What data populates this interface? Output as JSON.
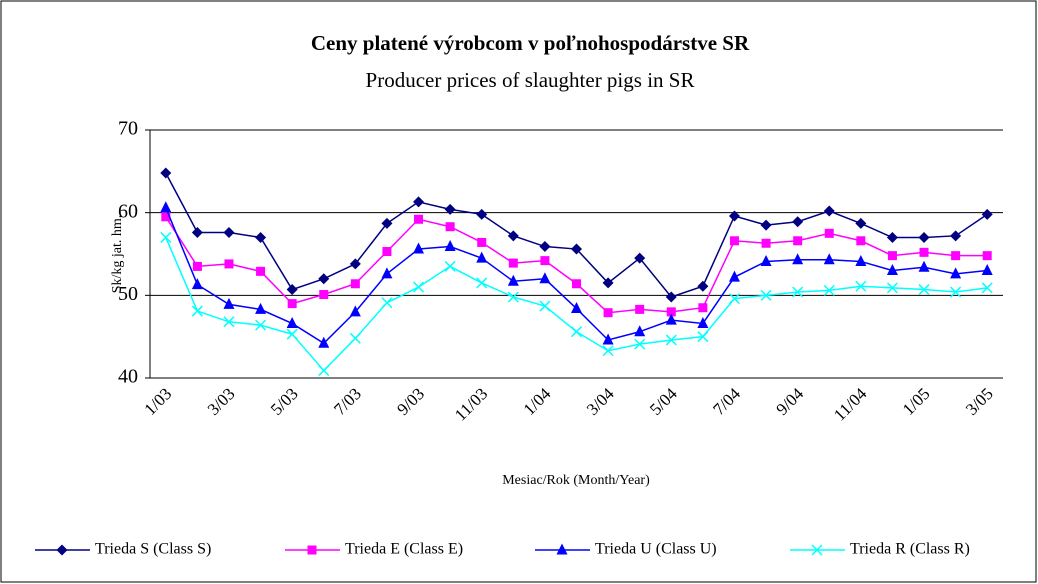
{
  "chart_data": {
    "type": "line",
    "title": "Ceny platené výrobcom v poľnohospodárstve SR",
    "subtitle": "Producer prices of slaughter pigs in SR",
    "y_label": "Sk/kg jat. hm.",
    "x_label": "Mesiac/Rok (Month/Year)",
    "categories": [
      "1/03",
      null,
      "3/03",
      null,
      "5/03",
      null,
      "7/03",
      null,
      "9/03",
      null,
      "11/03",
      null,
      "1/04",
      null,
      "3/04",
      null,
      "5/04",
      null,
      "7/04",
      null,
      "9/04",
      null,
      "11/04",
      null,
      "1/05",
      null,
      "3/05"
    ],
    "ylim": [
      40,
      70
    ],
    "yticks": [
      40,
      50,
      60,
      70
    ],
    "grid": true,
    "legend": "bottom",
    "series": [
      {
        "name": "Trieda S (Class S)",
        "color": "#000080",
        "marker": "diamond",
        "values": [
          64.8,
          57.6,
          57.6,
          57.0,
          50.7,
          52.0,
          53.8,
          58.7,
          61.3,
          60.4,
          59.8,
          57.2,
          55.9,
          55.6,
          51.5,
          54.5,
          49.8,
          51.1,
          59.6,
          58.5,
          58.9,
          60.2,
          58.7,
          57.0,
          57.0,
          57.2,
          59.8
        ]
      },
      {
        "name": "Trieda E (Class E)",
        "color": "#ff00ff",
        "marker": "square",
        "values": [
          59.5,
          53.5,
          53.8,
          52.9,
          49.0,
          50.1,
          51.4,
          55.3,
          59.2,
          58.3,
          56.4,
          53.9,
          54.2,
          51.4,
          47.9,
          48.3,
          48.0,
          48.5,
          56.6,
          56.3,
          56.6,
          57.5,
          56.6,
          54.8,
          55.2,
          54.8,
          54.8
        ]
      },
      {
        "name": "Trieda U (Class U)",
        "color": "#0000ff",
        "marker": "triangle",
        "values": [
          60.6,
          51.3,
          48.9,
          48.3,
          46.6,
          44.2,
          48.0,
          52.6,
          55.6,
          55.9,
          54.5,
          51.7,
          52.0,
          48.4,
          44.6,
          45.6,
          47.0,
          46.6,
          52.2,
          54.1,
          54.3,
          54.3,
          54.1,
          53.0,
          53.4,
          52.6,
          53.0
        ]
      },
      {
        "name": "Trieda R (Class R)",
        "color": "#00ffff",
        "marker": "x",
        "values": [
          57.0,
          48.1,
          46.8,
          46.4,
          45.3,
          40.9,
          44.8,
          49.1,
          51.0,
          53.5,
          51.5,
          49.8,
          48.7,
          45.6,
          43.3,
          44.1,
          44.6,
          45.0,
          49.6,
          50.0,
          50.4,
          50.6,
          51.1,
          50.9,
          50.7,
          50.4,
          50.9
        ]
      }
    ]
  }
}
